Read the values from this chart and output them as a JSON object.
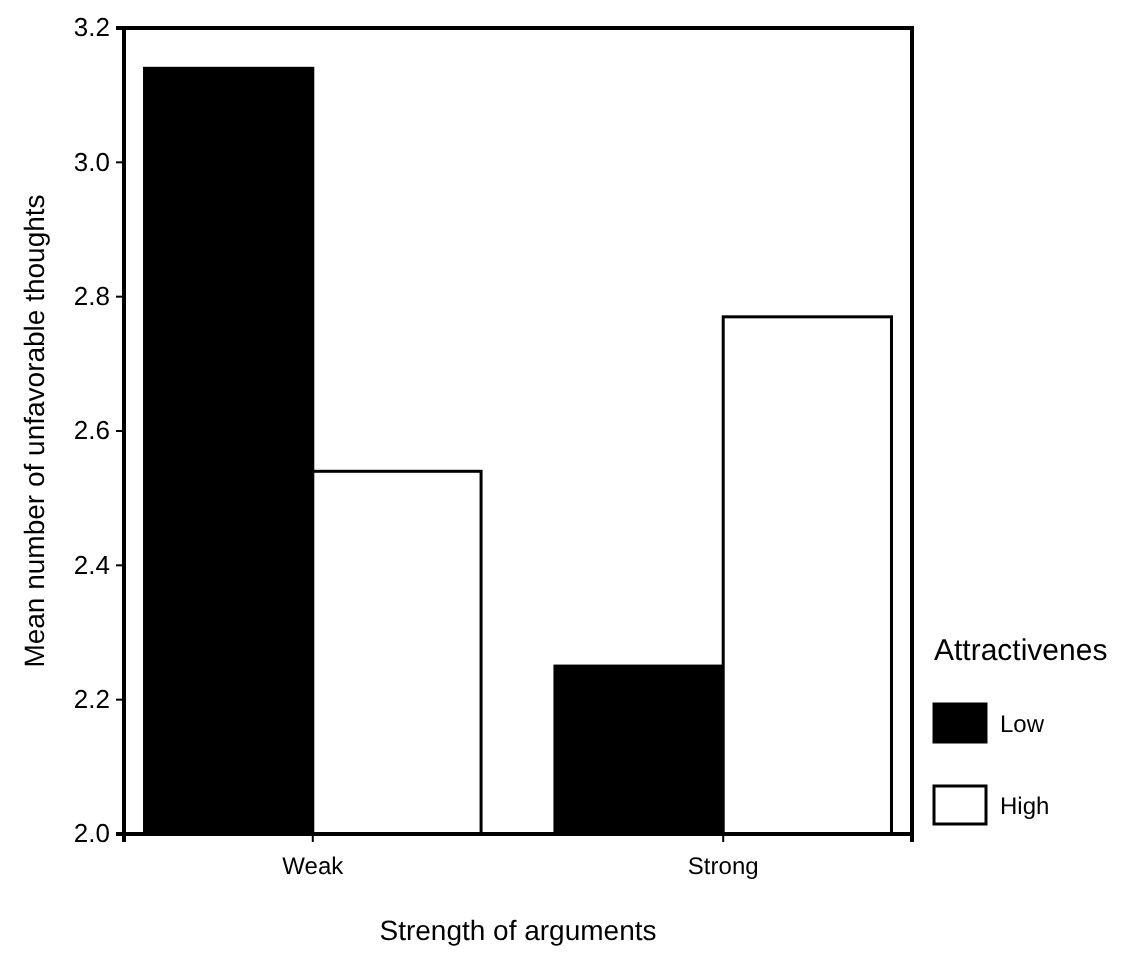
{
  "chart_data": {
    "type": "bar",
    "xlabel": "Strength of arguments",
    "ylabel": "Mean number of unfavorable thoughts",
    "legend_title": "Attractivenes",
    "categories": [
      "Weak",
      "Strong"
    ],
    "series": [
      {
        "name": "Low",
        "color": "#000000",
        "values": [
          3.14,
          2.25
        ]
      },
      {
        "name": "High",
        "color": "#ffffff",
        "values": [
          2.54,
          2.77
        ]
      }
    ],
    "ylim": [
      2.0,
      3.2
    ],
    "yticks": [
      {
        "value": 2.0,
        "label": "2.0"
      },
      {
        "value": 2.2,
        "label": "2.2"
      },
      {
        "value": 2.4,
        "label": "2.4"
      },
      {
        "value": 2.6,
        "label": "2.6"
      },
      {
        "value": 2.8,
        "label": "2.8"
      },
      {
        "value": 3.0,
        "label": "3.0"
      },
      {
        "value": 3.2,
        "label": "3.2"
      }
    ],
    "grid": false,
    "legend": "right"
  }
}
